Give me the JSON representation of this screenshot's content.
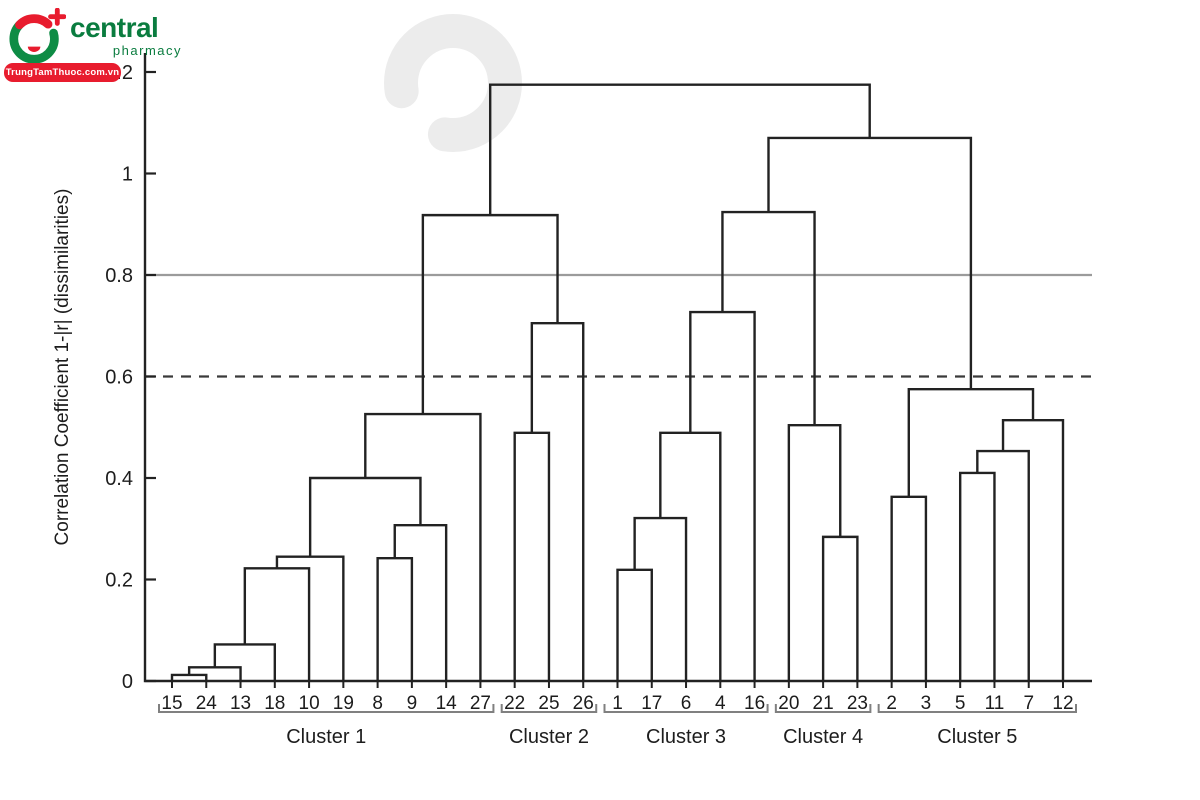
{
  "logo": {
    "brand": "central",
    "tagline": "pharmacy",
    "banner": "TrungTamThuoc.com.vn",
    "green": "#0e8c45",
    "red": "#e81c2e"
  },
  "chart_data": {
    "type": "dendrogram",
    "title": "",
    "xlabel": "",
    "ylabel": "Correlation Coefficient 1-|r| (dissimilarities)",
    "ylim": [
      0,
      1.2
    ],
    "yticks": [
      0,
      0.2,
      0.4,
      0.6,
      0.8,
      1,
      1.2
    ],
    "ytick_labels": [
      "0",
      "0.2",
      "0.4",
      "0.6",
      "0.8",
      "1",
      "1.2"
    ],
    "grid": false,
    "reference_lines": [
      {
        "value": 0.8,
        "style": "solid",
        "color": "#9b9b9b"
      },
      {
        "value": 0.6,
        "style": "dashed",
        "color": "#3a3a3a"
      }
    ],
    "line_color": "#222222",
    "leaf_order": [
      "15",
      "24",
      "13",
      "18",
      "10",
      "19",
      "8",
      "9",
      "14",
      "27",
      "22",
      "25",
      "26",
      "1",
      "17",
      "6",
      "4",
      "16",
      "20",
      "21",
      "23",
      "2",
      "3",
      "5",
      "11",
      "7",
      "12"
    ],
    "merges": [
      {
        "id": "A",
        "a": "15",
        "b": "24",
        "height": 0.012
      },
      {
        "id": "B",
        "a": "A",
        "b": "13",
        "height": 0.027
      },
      {
        "id": "C",
        "a": "B",
        "b": "18",
        "height": 0.072
      },
      {
        "id": "D",
        "a": "C",
        "b": "10",
        "height": 0.222
      },
      {
        "id": "E",
        "a": "D",
        "b": "19",
        "height": 0.245
      },
      {
        "id": "F",
        "a": "8",
        "b": "9",
        "height": 0.242
      },
      {
        "id": "G",
        "a": "F",
        "b": "14",
        "height": 0.307
      },
      {
        "id": "H",
        "a": "E",
        "b": "G",
        "height": 0.4
      },
      {
        "id": "I",
        "a": "H",
        "b": "27",
        "height": 0.526
      },
      {
        "id": "J",
        "a": "22",
        "b": "25",
        "height": 0.489
      },
      {
        "id": "K",
        "a": "J",
        "b": "26",
        "height": 0.705
      },
      {
        "id": "L",
        "a": "I",
        "b": "K",
        "height": 0.918
      },
      {
        "id": "M",
        "a": "1",
        "b": "17",
        "height": 0.219
      },
      {
        "id": "N",
        "a": "M",
        "b": "6",
        "height": 0.321
      },
      {
        "id": "O",
        "a": "N",
        "b": "4",
        "height": 0.489
      },
      {
        "id": "P",
        "a": "O",
        "b": "16",
        "height": 0.727
      },
      {
        "id": "Q",
        "a": "21",
        "b": "23",
        "height": 0.284
      },
      {
        "id": "R",
        "a": "20",
        "b": "Q",
        "height": 0.504
      },
      {
        "id": "S",
        "a": "P",
        "b": "R",
        "height": 0.924
      },
      {
        "id": "T",
        "a": "2",
        "b": "3",
        "height": 0.363
      },
      {
        "id": "U",
        "a": "5",
        "b": "11",
        "height": 0.41
      },
      {
        "id": "V",
        "a": "U",
        "b": "7",
        "height": 0.453
      },
      {
        "id": "W",
        "a": "V",
        "b": "12",
        "height": 0.514
      },
      {
        "id": "X",
        "a": "T",
        "b": "W",
        "height": 0.575
      },
      {
        "id": "Y",
        "a": "S",
        "b": "X",
        "height": 1.07
      },
      {
        "id": "Z",
        "a": "L",
        "b": "Y",
        "height": 1.175
      }
    ],
    "clusters": [
      {
        "label": "Cluster 1",
        "leaves": [
          "15",
          "24",
          "13",
          "18",
          "10",
          "19",
          "8",
          "9",
          "14",
          "27"
        ]
      },
      {
        "label": "Cluster 2",
        "leaves": [
          "22",
          "25",
          "26"
        ]
      },
      {
        "label": "Cluster 3",
        "leaves": [
          "1",
          "17",
          "6",
          "4",
          "16"
        ]
      },
      {
        "label": "Cluster 4",
        "leaves": [
          "20",
          "21",
          "23"
        ]
      },
      {
        "label": "Cluster 5",
        "leaves": [
          "2",
          "3",
          "5",
          "11",
          "7",
          "12"
        ]
      }
    ]
  }
}
